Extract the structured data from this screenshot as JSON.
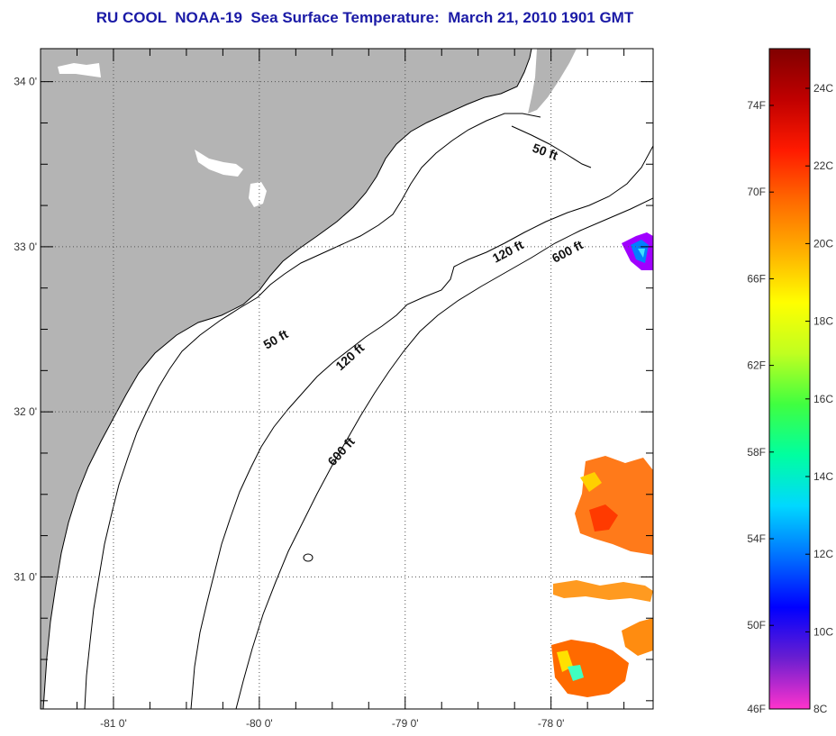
{
  "title": "RU COOL  NOAA-19  Sea Surface Temperature:  March 21, 2010 1901 GMT",
  "map": {
    "lon_range": [
      -81.5,
      -77.3
    ],
    "lat_range": [
      30.2,
      34.2
    ],
    "lon_ticks": [
      {
        "value": -81,
        "label": "-81 0'"
      },
      {
        "value": -80,
        "label": "-80 0'"
      },
      {
        "value": -79,
        "label": "-79 0'"
      },
      {
        "value": -78,
        "label": "-78 0'"
      }
    ],
    "lat_ticks": [
      {
        "value": 34,
        "label": "34 0'"
      },
      {
        "value": 33,
        "label": "33 0'"
      },
      {
        "value": 32,
        "label": "32 0'"
      },
      {
        "value": 31,
        "label": "31 0'"
      }
    ],
    "land_color": "#b4b4b4",
    "contour_labels": [
      {
        "text": "50 ft"
      },
      {
        "text": "120 ft"
      },
      {
        "text": "600 ft"
      },
      {
        "text": "50 ft"
      },
      {
        "text": "120 ft"
      },
      {
        "text": "600 ft"
      }
    ]
  },
  "colorbar": {
    "fahrenheit_labels": [
      "74F",
      "70F",
      "66F",
      "62F",
      "58F",
      "54F",
      "50F",
      "46F"
    ],
    "celsius_labels": [
      "24C",
      "22C",
      "20C",
      "18C",
      "16C",
      "14C",
      "12C",
      "10C",
      "8C"
    ],
    "colors": [
      "#ff33cc",
      "#6a1ed0",
      "#0000ff",
      "#0070ff",
      "#00d8ff",
      "#00ffa0",
      "#40ff40",
      "#c0ff20",
      "#ffff00",
      "#ffb000",
      "#ff6a00",
      "#ff1a00",
      "#c00000",
      "#800000"
    ]
  }
}
